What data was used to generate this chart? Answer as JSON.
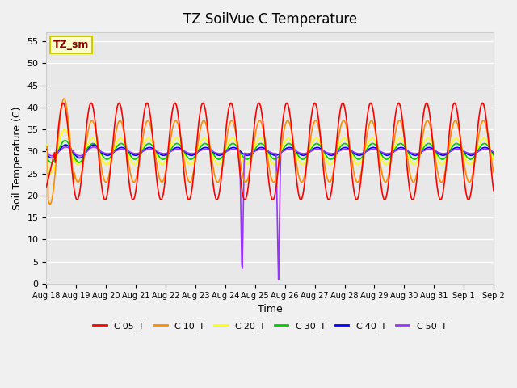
{
  "title": "TZ SoilVue C Temperature",
  "xlabel": "Time",
  "ylabel": "Soil Temperature (C)",
  "ylim": [
    0,
    57
  ],
  "yticks": [
    0,
    5,
    10,
    15,
    20,
    25,
    30,
    35,
    40,
    45,
    50,
    55
  ],
  "date_labels": [
    "Aug 18",
    "Aug 19",
    "Aug 20",
    "Aug 21",
    "Aug 22",
    "Aug 23",
    "Aug 24",
    "Aug 25",
    "Aug 26",
    "Aug 27",
    "Aug 28",
    "Aug 29",
    "Aug 30",
    "Aug 31",
    "Sep 1",
    "Sep 2"
  ],
  "legend_label": "TZ_sm",
  "series_labels": [
    "C-05_T",
    "C-10_T",
    "C-20_T",
    "C-30_T",
    "C-40_T",
    "C-50_T"
  ],
  "series_colors": [
    "#ff0000",
    "#ff8c00",
    "#ffff00",
    "#00cc00",
    "#0000ff",
    "#9933ff"
  ],
  "background_color": "#f0f0f0",
  "plot_bg_color": "#e8e8e8",
  "grid_color": "#ffffff",
  "n_days": 16
}
